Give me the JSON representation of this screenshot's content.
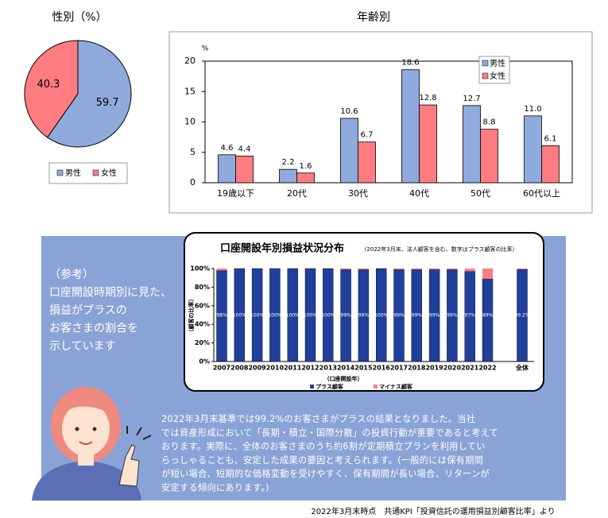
{
  "chart_data": [
    {
      "type": "pie",
      "title": "性別（%）",
      "categories": [
        "男性",
        "女性"
      ],
      "values": [
        59.7,
        40.3
      ],
      "colors": [
        "#8faadc",
        "#ff7c80"
      ],
      "legend": "bottom"
    },
    {
      "type": "bar",
      "title": "年齢別",
      "y_unit": "%",
      "categories": [
        "19歳以下",
        "20代",
        "30代",
        "40代",
        "50代",
        "60代以上"
      ],
      "series": [
        {
          "name": "男性",
          "color": "#8faadc",
          "values": [
            4.6,
            2.2,
            10.6,
            18.6,
            12.7,
            11.0
          ],
          "value_labels": [
            "4.6",
            "2.2",
            "10.6",
            "18.6",
            "12.7",
            "11.0"
          ]
        },
        {
          "name": "女性",
          "color": "#ff7c80",
          "values": [
            4.4,
            1.6,
            6.7,
            12.8,
            8.8,
            6.1
          ]
        }
      ],
      "ylim": [
        0,
        20
      ],
      "yticks": [
        0,
        5,
        10,
        15,
        20
      ],
      "legend": "upper right"
    },
    {
      "type": "bar",
      "stacked": true,
      "title": "口座開設年別損益状況分布",
      "subtitle": "（2022年3月末、法人顧客を含む、数字はプラス顧客の比率）",
      "y_label": "（顧客の比率）",
      "x_label": "（口座開設年）",
      "categories": [
        "2007",
        "2008",
        "2009",
        "2010",
        "2011",
        "2012",
        "2013",
        "2014",
        "2015",
        "2016",
        "2017",
        "2018",
        "2019",
        "2020",
        "2021",
        "2022",
        "全体"
      ],
      "series": [
        {
          "name": "プラス顧客",
          "color": "#1f3f9a",
          "values": [
            98,
            100,
            100,
            100,
            100,
            100,
            100,
            99,
            99,
            100,
            99,
            99,
            99,
            99,
            97,
            89,
            99.2
          ],
          "value_labels": [
            "98%",
            "100%",
            "100%",
            "100%",
            "100%",
            "100%",
            "100%",
            "99%",
            "99%",
            "100%",
            "99%",
            "99%",
            "99%",
            "99%",
            "97%",
            "89%",
            "99.2%"
          ]
        },
        {
          "name": "マイナス顧客",
          "color": "#ff7c80",
          "values": [
            2,
            0,
            0,
            0,
            0,
            0,
            0,
            1,
            1,
            0,
            1,
            1,
            1,
            1,
            3,
            11,
            0.8
          ]
        }
      ],
      "ylim": [
        0,
        100
      ],
      "yticks": [
        {
          "value": 0,
          "label": "0%"
        },
        {
          "value": 20,
          "label": "20%"
        },
        {
          "value": 40,
          "label": "40%"
        },
        {
          "value": 60,
          "label": "60%"
        },
        {
          "value": 80,
          "label": "80%"
        },
        {
          "value": 100,
          "label": "100%"
        }
      ],
      "legend": "bottom"
    }
  ],
  "panel": {
    "note": [
      "（参考）",
      "口座開設時期別に見た、",
      "損益がプラスの",
      "お客さまの割合を",
      "示しています"
    ],
    "body": [
      "2022年3月末基準では99.2%のお客さまがプラスの結果となりました。当社",
      "では資産形成において「長期・積立・国際分散」の投資行動が重要であると考えて",
      "おります。実際に、全体のお客さまのうち約6割が定期積立プランを利用してい",
      "らっしゃることも、安定した成果の要因と考えられます。(一般的には保有期間",
      "が短い場合、短期的な価格変動を受けやすく、保有期間が長い場合、リターンが",
      "安定する傾向にあります。)"
    ],
    "source": "2022年3月末時点　共通KPI「投資信託の運用損益別顧客比率」より"
  }
}
